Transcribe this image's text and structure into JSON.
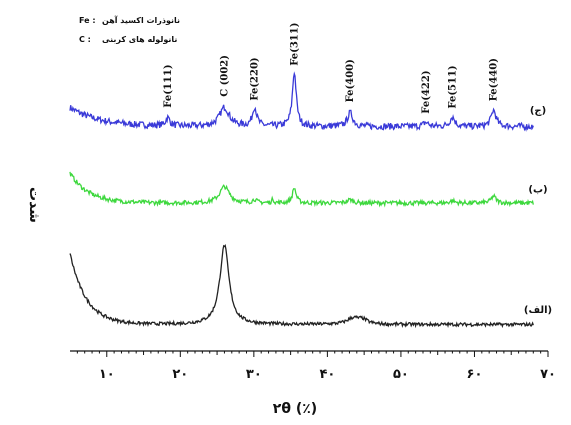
{
  "chart_data": {
    "type": "line",
    "xlabel": "۲θ (٪)",
    "ylabel": "شدت",
    "xlim": [
      5,
      70
    ],
    "x_ticks": [
      10,
      20,
      30,
      40,
      50,
      60,
      70
    ],
    "x_tick_labels": [
      "۱۰",
      "۲۰",
      "۳۰",
      "۴۰",
      "۵۰",
      "۶۰",
      "۷۰"
    ],
    "grid": false,
    "legend": {
      "placement": "top-left",
      "entries": [
        {
          "symbol": "Fe :",
          "text": "نانوذرات اکسید آهن"
        },
        {
          "symbol": "C :",
          "text": "نانولوله های کربنی"
        }
      ]
    },
    "series": [
      {
        "name": "(ج)",
        "color": "#3a3ad8",
        "baseline": 0.8,
        "noise": 0.012,
        "background": {
          "amp": 0.07,
          "decay": 4
        },
        "peaks": [
          {
            "x": 18.3,
            "h": 0.03,
            "w": 0.35
          },
          {
            "x": 26.0,
            "h": 0.07,
            "w": 0.8
          },
          {
            "x": 30.1,
            "h": 0.07,
            "w": 0.35
          },
          {
            "x": 35.5,
            "h": 0.2,
            "w": 0.32
          },
          {
            "x": 43.1,
            "h": 0.05,
            "w": 0.45
          },
          {
            "x": 53.4,
            "h": 0.015,
            "w": 0.4
          },
          {
            "x": 57.0,
            "h": 0.035,
            "w": 0.4
          },
          {
            "x": 62.6,
            "h": 0.06,
            "w": 0.4
          }
        ]
      },
      {
        "name": "(ب)",
        "color": "#3ed83e",
        "baseline": 0.52,
        "noise": 0.008,
        "background": {
          "amp": 0.11,
          "decay": 2.5
        },
        "peaks": [
          {
            "x": 26.0,
            "h": 0.06,
            "w": 0.8
          },
          {
            "x": 30.1,
            "h": 0.012,
            "w": 0.3
          },
          {
            "x": 32.6,
            "h": 0.014,
            "w": 0.15
          },
          {
            "x": 35.5,
            "h": 0.055,
            "w": 0.3
          },
          {
            "x": 43.1,
            "h": 0.012,
            "w": 0.5
          },
          {
            "x": 57.0,
            "h": 0.008,
            "w": 0.4
          },
          {
            "x": 62.6,
            "h": 0.025,
            "w": 0.4
          }
        ]
      },
      {
        "name": "(الف)",
        "color": "#222222",
        "baseline": 0.075,
        "noise": 0.006,
        "background": {
          "amp": 0.26,
          "decay": 2.2
        },
        "peaks": [
          {
            "x": 26.0,
            "h": 0.29,
            "w": 0.75
          },
          {
            "x": 43.5,
            "h": 0.022,
            "w": 1.0
          },
          {
            "x": 44.8,
            "h": 0.015,
            "w": 0.8
          }
        ]
      }
    ],
    "peak_labels": [
      {
        "x": 18.3,
        "text": "Fe(111)"
      },
      {
        "x": 26.0,
        "text": "C (002)"
      },
      {
        "x": 30.1,
        "text": "Fe(220)"
      },
      {
        "x": 35.5,
        "text": "Fe(311)"
      },
      {
        "x": 43.1,
        "text": "Fe(400)"
      },
      {
        "x": 53.4,
        "text": "Fe(422)"
      },
      {
        "x": 57.0,
        "text": "Fe(511)"
      },
      {
        "x": 62.6,
        "text": "Fe(440)"
      }
    ]
  }
}
